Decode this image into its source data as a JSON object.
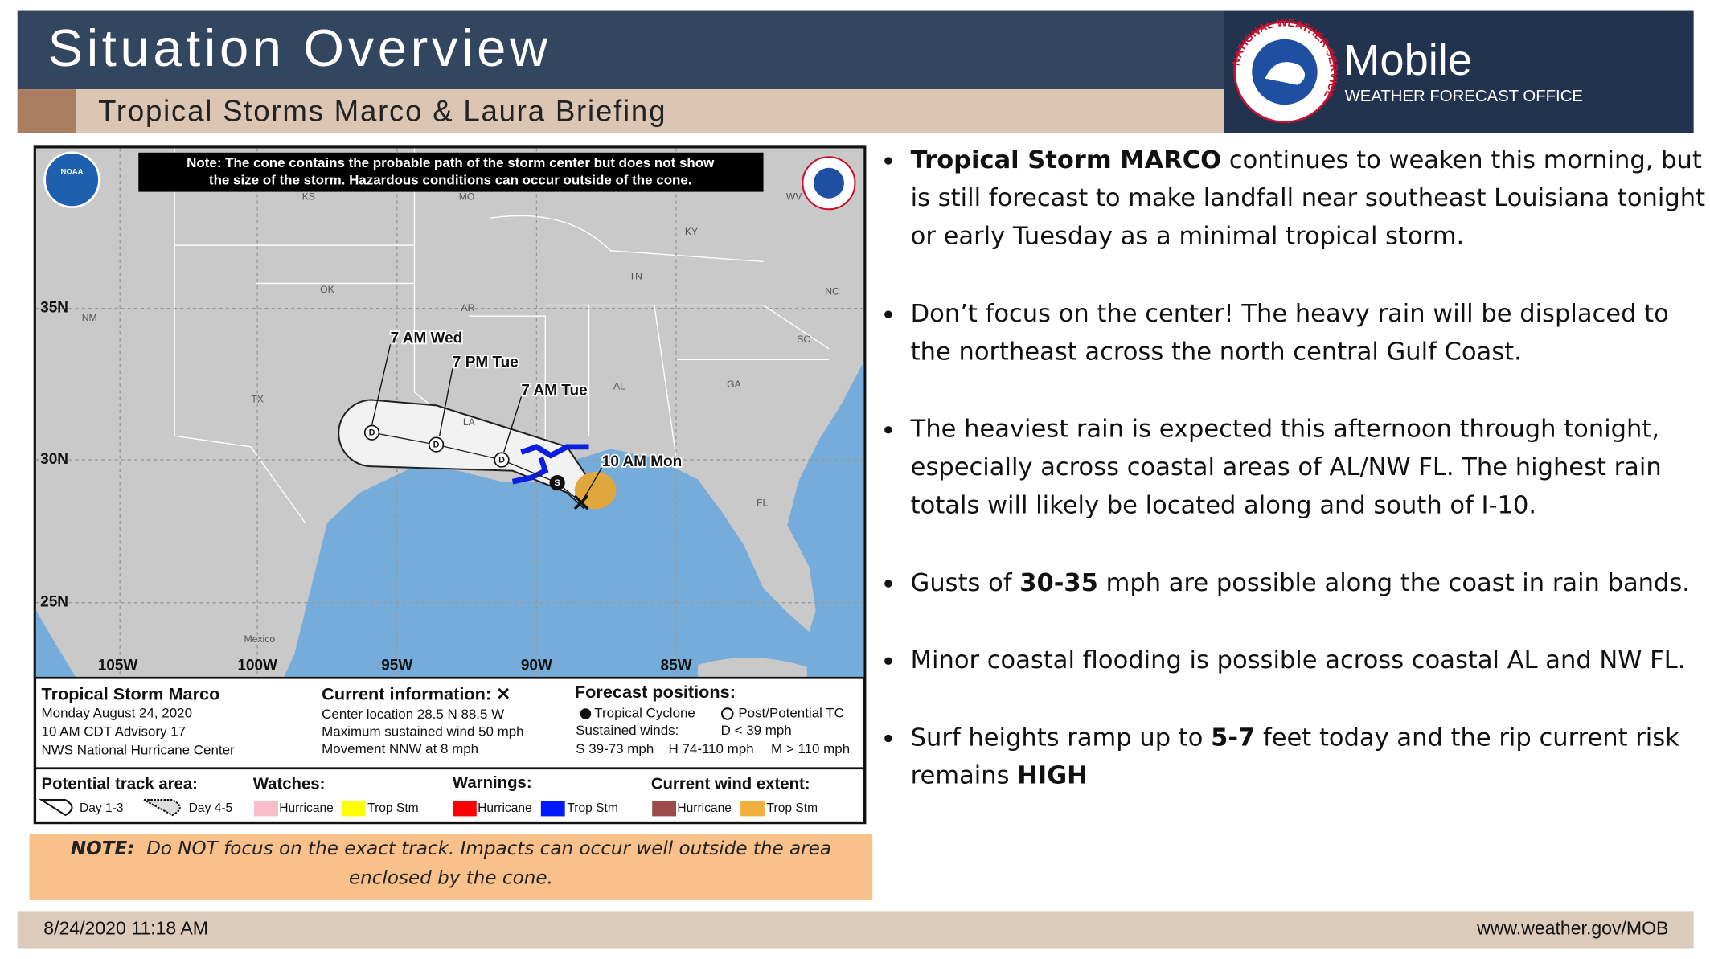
{
  "header": {
    "title": "Situation Overview",
    "subtitle": "Tropical Storms Marco & Laura Briefing",
    "office": "Mobile",
    "office_subtitle": "WEATHER FORECAST OFFICE",
    "logo_text": "NATIONAL WEATHER SERVICE"
  },
  "map": {
    "note": [
      "Note: The cone contains the probable path of the storm center but does not show",
      "the size of the storm. Hazardous conditions can occur outside of the cone."
    ],
    "noaa_logo": "NOAA",
    "state_labels": [
      "KS",
      "MO",
      "WV",
      "KY",
      "TN",
      "NC",
      "OK",
      "AR",
      "NM",
      "SC",
      "AL",
      "GA",
      "TX",
      "LA",
      "FL",
      "Mexico"
    ],
    "lat_labels": [
      "35N",
      "30N",
      "25N"
    ],
    "lon_labels": [
      "105W",
      "100W",
      "95W",
      "90W",
      "85W"
    ],
    "forecast_labels": [
      "7 AM Wed",
      "7 PM Tue",
      "7 AM Tue",
      "10 AM Mon"
    ],
    "point_labels": [
      "D",
      "D",
      "D",
      "S"
    ],
    "legend": [
      "Tropical Storm Marco",
      "Monday August 24, 2020",
      "10 AM CDT Advisory 17",
      "NWS National Hurricane Center",
      "Current information: ✕",
      "Center location 28.5 N 88.5 W",
      "Maximum sustained wind 50 mph",
      "Movement NNW at 8 mph",
      "Forecast positions:",
      "Tropical Cyclone",
      "Post/Potential TC",
      "Sustained winds:",
      "D < 39 mph",
      "S 39-73 mph",
      "H 74-110 mph",
      "M > 110 mph",
      "Potential track area:",
      "Watches:",
      "Warnings:",
      "Current wind extent:",
      "Day 1-3",
      "Day 4-5",
      "Hurricane",
      "Trop Stm",
      "Hurricane",
      "Trop Stm",
      "Hurricane",
      "Trop Stm"
    ]
  },
  "cone_note": {
    "label": "NOTE:",
    "text": "Do NOT focus on the exact track. Impacts can occur well outside the area enclosed by the cone."
  },
  "bullets": [
    [
      {
        "text": "Tropical Storm MARCO",
        "bold": true
      },
      {
        "text": " continues to weaken this morning, but is still forecast to make landfall near southeast Louisiana tonight or early Tuesday as a minimal tropical storm.",
        "bold": false
      }
    ],
    [
      {
        "text": "Don’t focus on the center! The heavy rain will be displaced to the northeast across the north central Gulf Coast.",
        "bold": false
      }
    ],
    [
      {
        "text": "The heaviest rain is expected this afternoon through tonight, especially across coastal areas of AL/NW FL. The highest rain totals will likely be located along and south of I-10.",
        "bold": false
      }
    ],
    [
      {
        "text": "Gusts of ",
        "bold": false
      },
      {
        "text": "30-35",
        "bold": true
      },
      {
        "text": " mph are possible along the coast in rain bands.",
        "bold": false
      }
    ],
    [
      {
        "text": "Minor coastal flooding is possible across coastal AL and NW FL.",
        "bold": false
      }
    ],
    [
      {
        "text": "Surf heights ramp up to ",
        "bold": false
      },
      {
        "text": "5-7",
        "bold": true
      },
      {
        "text": " feet today and the rip current risk remains ",
        "bold": false
      },
      {
        "text": "HIGH",
        "bold": true
      }
    ]
  ],
  "footer": {
    "date": "8/24/2020 11:18 AM",
    "url": "www.weather.gov/MOB"
  }
}
